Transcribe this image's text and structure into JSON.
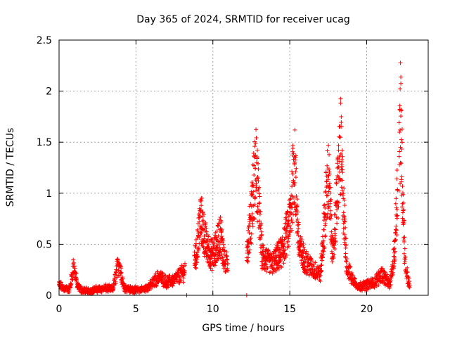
{
  "chart_data": {
    "type": "scatter",
    "title": "Day 365 of 2024, SRMTID for receiver ucag",
    "xlabel": "GPS time / hours",
    "ylabel": "SRMTID / TECUs",
    "xlim": [
      0,
      24
    ],
    "ylim": [
      0,
      2.5
    ],
    "xticks": [
      0,
      5,
      10,
      15,
      20
    ],
    "yticks": [
      0,
      0.5,
      1,
      1.5,
      2,
      2.5
    ],
    "x_tick_labels": [
      "0",
      "5",
      "10",
      "15",
      "20"
    ],
    "y_tick_labels": [
      "0",
      "0.5",
      "1",
      "1.5",
      "2",
      "2.5"
    ],
    "grid": true,
    "marker": "+",
    "color": "#ff0000",
    "gaps": [
      [
        8.2,
        8.8
      ],
      [
        11.0,
        12.2
      ],
      [
        22.0,
        22.1
      ]
    ],
    "profile": [
      [
        0.0,
        0.12
      ],
      [
        0.3,
        0.08
      ],
      [
        0.7,
        0.07
      ],
      [
        0.95,
        0.35
      ],
      [
        1.2,
        0.1
      ],
      [
        1.5,
        0.06
      ],
      [
        2.0,
        0.05
      ],
      [
        2.5,
        0.07
      ],
      [
        3.0,
        0.08
      ],
      [
        3.5,
        0.07
      ],
      [
        3.9,
        0.4
      ],
      [
        4.2,
        0.1
      ],
      [
        4.6,
        0.07
      ],
      [
        5.0,
        0.06
      ],
      [
        5.5,
        0.07
      ],
      [
        6.0,
        0.12
      ],
      [
        6.5,
        0.22
      ],
      [
        7.0,
        0.15
      ],
      [
        7.5,
        0.18
      ],
      [
        8.0,
        0.25
      ],
      [
        8.9,
        0.45
      ],
      [
        9.2,
        0.9
      ],
      [
        9.6,
        0.55
      ],
      [
        10.0,
        0.45
      ],
      [
        10.5,
        0.7
      ],
      [
        10.8,
        0.35
      ],
      [
        12.3,
        0.6
      ],
      [
        12.8,
        1.5
      ],
      [
        13.2,
        0.45
      ],
      [
        13.8,
        0.35
      ],
      [
        14.5,
        0.5
      ],
      [
        15.0,
        0.85
      ],
      [
        15.3,
        1.55
      ],
      [
        15.6,
        0.55
      ],
      [
        16.0,
        0.4
      ],
      [
        16.5,
        0.3
      ],
      [
        17.0,
        0.25
      ],
      [
        17.5,
        1.4
      ],
      [
        17.8,
        0.45
      ],
      [
        18.3,
        1.7
      ],
      [
        18.7,
        0.35
      ],
      [
        19.0,
        0.2
      ],
      [
        19.5,
        0.1
      ],
      [
        20.0,
        0.12
      ],
      [
        20.5,
        0.15
      ],
      [
        21.0,
        0.25
      ],
      [
        21.5,
        0.12
      ],
      [
        21.8,
        0.45
      ],
      [
        22.2,
        2.05
      ],
      [
        22.5,
        0.35
      ],
      [
        22.8,
        0.1
      ]
    ]
  }
}
